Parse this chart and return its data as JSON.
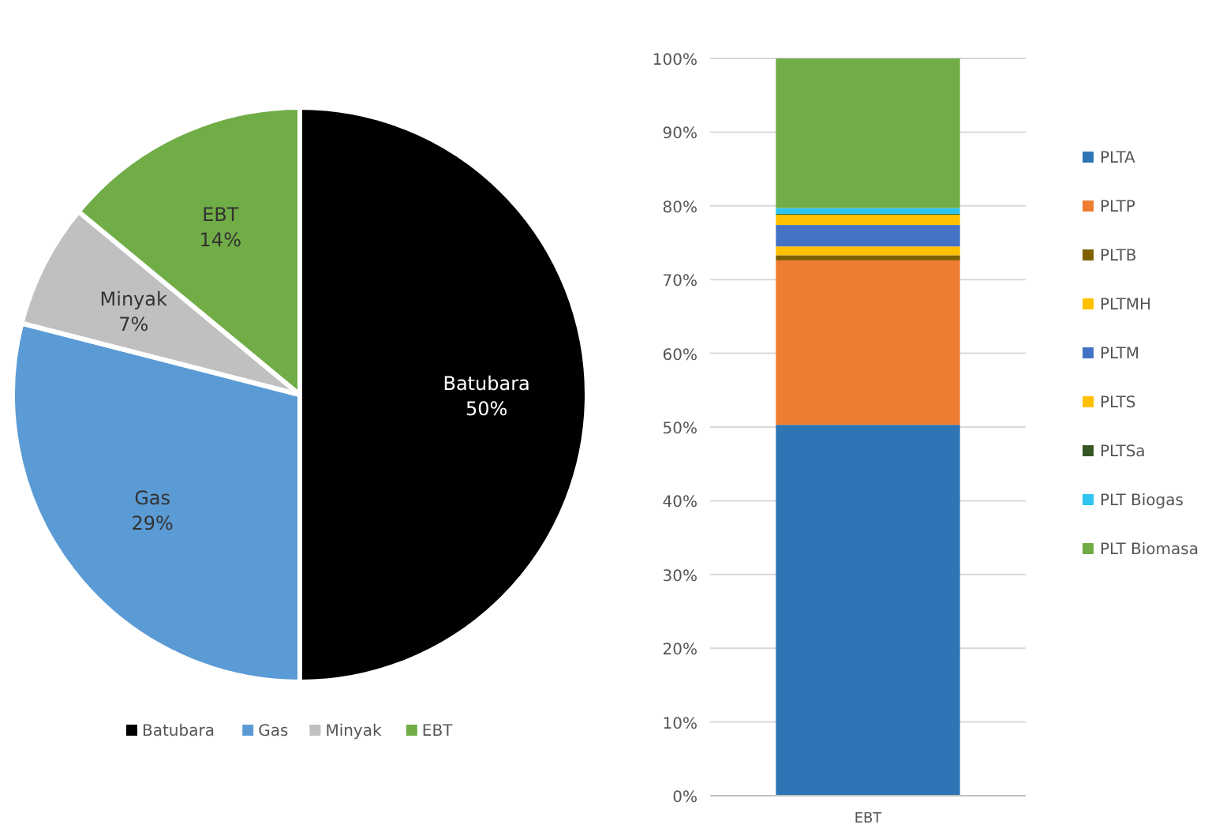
{
  "chart_data": [
    {
      "type": "pie",
      "categories": [
        "Batubara",
        "Gas",
        "Minyak",
        "EBT"
      ],
      "values": [
        50,
        29,
        7,
        14
      ],
      "colors": [
        "#000000",
        "#5b9bd5",
        "#c0c0c0",
        "#70ad47"
      ],
      "value_labels": [
        "50%",
        "29%",
        "7%",
        "14%"
      ],
      "legend": "bottom"
    },
    {
      "type": "bar",
      "stacked": true,
      "categories": [
        "EBT"
      ],
      "series": [
        {
          "name": "PLTA",
          "color": "#2e75b6",
          "values": [
            50.3
          ]
        },
        {
          "name": "PLTP",
          "color": "#ed7d31",
          "values": [
            22.3
          ]
        },
        {
          "name": "PLTB",
          "color": "#7f6000",
          "values": [
            0.7
          ]
        },
        {
          "name": "PLTMH",
          "color": "#ffc000",
          "values": [
            1.2
          ]
        },
        {
          "name": "PLTM",
          "color": "#4472c4",
          "values": [
            2.9
          ]
        },
        {
          "name": "PLTS",
          "color": "#ffc000",
          "values": [
            1.4
          ]
        },
        {
          "name": "PLTSa",
          "color": "#375623",
          "values": [
            0.1
          ]
        },
        {
          "name": "PLT Biogas",
          "color": "#2ec4f0",
          "values": [
            0.8
          ]
        },
        {
          "name": "PLT Biomasa",
          "color": "#70ad47",
          "values": [
            20.3
          ]
        }
      ],
      "ylim": [
        0,
        100
      ],
      "yticks": [
        {
          "value": 0,
          "label": "0%"
        },
        {
          "value": 10,
          "label": "10%"
        },
        {
          "value": 20,
          "label": "20%"
        },
        {
          "value": 30,
          "label": "30%"
        },
        {
          "value": 40,
          "label": "40%"
        },
        {
          "value": 50,
          "label": "50%"
        },
        {
          "value": 60,
          "label": "60%"
        },
        {
          "value": 70,
          "label": "70%"
        },
        {
          "value": 80,
          "label": "80%"
        },
        {
          "value": 90,
          "label": "90%"
        },
        {
          "value": 100,
          "label": "100%"
        }
      ],
      "grid": "y",
      "legend": "right"
    }
  ]
}
